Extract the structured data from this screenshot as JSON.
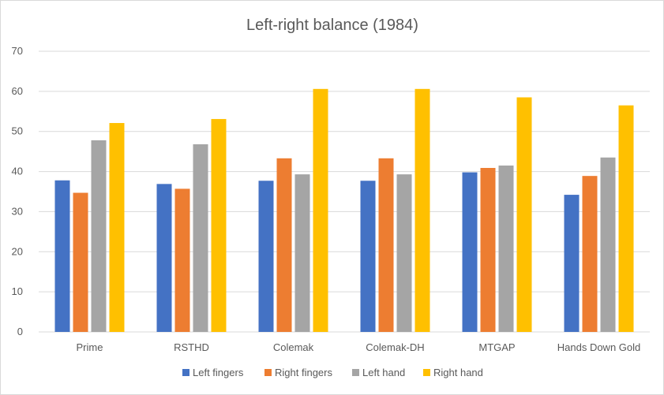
{
  "chart_data": {
    "type": "bar",
    "title": "Left-right balance (1984)",
    "xlabel": "",
    "ylabel": "",
    "ylim": [
      0,
      70
    ],
    "yticks": [
      0,
      10,
      20,
      30,
      40,
      50,
      60,
      70
    ],
    "grid": true,
    "legend_position": "bottom",
    "categories": [
      "Prime",
      "RSTHD",
      "Colemak",
      "Colemak-DH",
      "MTGAP",
      "Hands Down Gold"
    ],
    "series": [
      {
        "name": "Left fingers",
        "color": "#4472c4",
        "values": [
          37.8,
          36.9,
          37.7,
          37.7,
          39.8,
          34.2
        ]
      },
      {
        "name": "Right fingers",
        "color": "#ed7d31",
        "values": [
          34.7,
          35.7,
          43.3,
          43.3,
          40.9,
          38.9
        ]
      },
      {
        "name": "Left hand",
        "color": "#a5a5a5",
        "values": [
          47.8,
          46.8,
          39.3,
          39.3,
          41.5,
          43.5
        ]
      },
      {
        "name": "Right hand",
        "color": "#ffc000",
        "values": [
          52.1,
          53.1,
          60.6,
          60.6,
          58.5,
          56.5
        ]
      }
    ]
  }
}
